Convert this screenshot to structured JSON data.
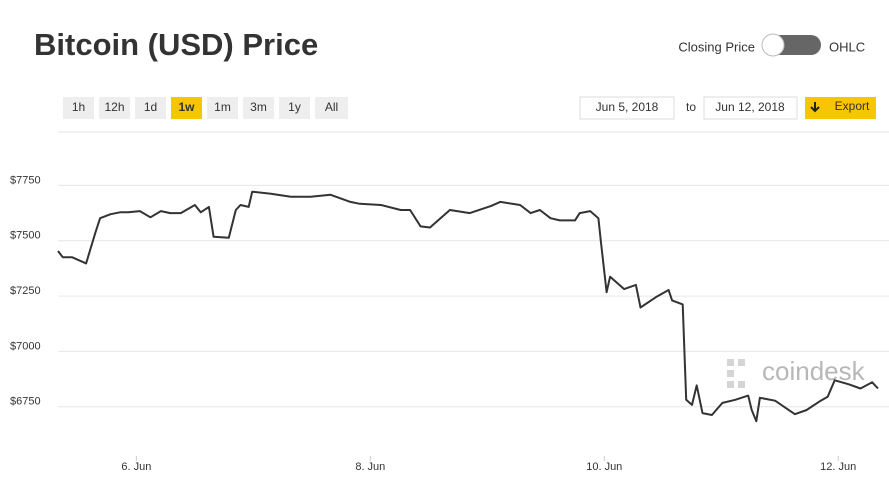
{
  "ui": {
    "title": "Bitcoin (USD) Price",
    "toggle_left": "Closing Price",
    "toggle_right": "OHLC",
    "ranges": [
      "1h",
      "12h",
      "1d",
      "1w",
      "1m",
      "3m",
      "1y",
      "All"
    ],
    "active_range_index": 3,
    "date_from": "Jun 5, 2018",
    "date_sep": "to",
    "date_to": "Jun 12, 2018",
    "export": "Export",
    "watermark": "coindesk"
  },
  "chart_data": {
    "type": "line",
    "color": "#333333",
    "grid": true,
    "x": [
      5.33,
      5.37,
      5.45,
      5.57,
      5.65,
      5.69,
      5.78,
      5.86,
      5.93,
      6.03,
      6.12,
      6.21,
      6.29,
      6.38,
      6.5,
      6.55,
      6.62,
      6.66,
      6.79,
      6.85,
      6.89,
      6.96,
      6.99,
      7.15,
      7.32,
      7.49,
      7.66,
      7.83,
      7.91,
      8.09,
      8.26,
      8.34,
      8.43,
      8.51,
      8.6,
      8.68,
      8.85,
      9.03,
      9.11,
      9.28,
      9.37,
      9.45,
      9.54,
      9.62,
      9.75,
      9.79,
      9.88,
      9.95,
      9.97,
      10.02,
      10.05,
      10.17,
      10.27,
      10.31,
      10.44,
      10.55,
      10.58,
      10.67,
      10.7,
      10.75,
      10.79,
      10.84,
      10.92,
      11.01,
      11.12,
      11.23,
      11.26,
      11.3,
      11.33,
      11.46,
      11.63,
      11.73,
      11.85,
      11.91,
      11.97,
      12.09,
      12.19,
      12.29,
      12.34
    ],
    "values": [
      7431,
      7403,
      7403,
      7375,
      7514,
      7579,
      7597,
      7606,
      7606,
      7611,
      7583,
      7611,
      7602,
      7602,
      7639,
      7606,
      7630,
      7495,
      7491,
      7616,
      7639,
      7630,
      7699,
      7690,
      7676,
      7676,
      7685,
      7653,
      7644,
      7639,
      7616,
      7616,
      7542,
      7537,
      7579,
      7616,
      7602,
      7634,
      7653,
      7639,
      7602,
      7616,
      7579,
      7569,
      7569,
      7602,
      7611,
      7579,
      7477,
      7245,
      7315,
      7259,
      7278,
      7176,
      7222,
      7255,
      7208,
      7190,
      6759,
      6736,
      6824,
      6699,
      6690,
      6745,
      6759,
      6778,
      6713,
      6662,
      6768,
      6755,
      6694,
      6713,
      6755,
      6773,
      6847,
      6829,
      6810,
      6838,
      6810
    ],
    "xlim": [
      5.33,
      12.34
    ],
    "ylim": [
      6505,
      7936
    ],
    "xticks": [
      {
        "value": 6,
        "label": "6. Jun"
      },
      {
        "value": 8,
        "label": "8. Jun"
      },
      {
        "value": 10,
        "label": "10. Jun"
      },
      {
        "value": 12,
        "label": "12. Jun"
      }
    ],
    "yticks": [
      {
        "value": 6750,
        "label": "$6750"
      },
      {
        "value": 7000,
        "label": "$7000"
      },
      {
        "value": 7250,
        "label": "$7250"
      },
      {
        "value": 7500,
        "label": "$7500"
      },
      {
        "value": 7750,
        "label": "$7750"
      }
    ]
  }
}
